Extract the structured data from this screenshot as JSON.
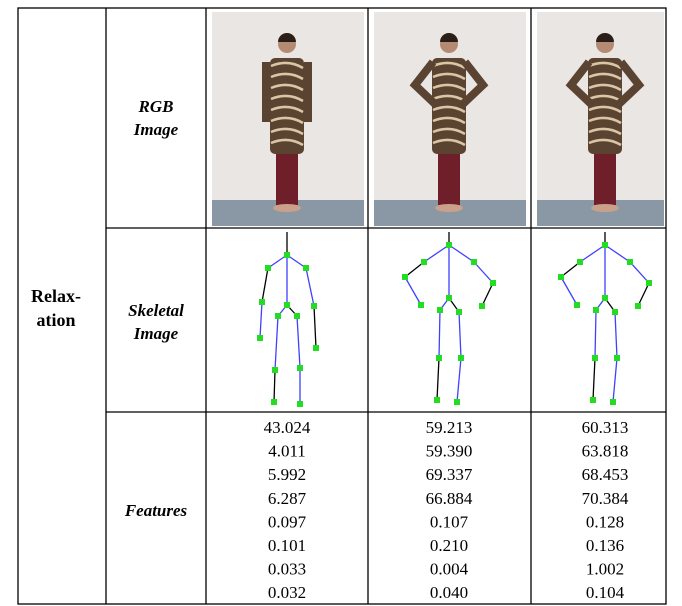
{
  "table": {
    "group_label": [
      "Relax-",
      "ation"
    ],
    "row_headers": [
      [
        "RGB",
        "Image"
      ],
      [
        "Skeletal",
        "Image"
      ],
      [
        "Features"
      ]
    ],
    "features": [
      [
        "43.024",
        "4.011",
        "5.992",
        "6.287",
        "0.097",
        "0.101",
        "0.033",
        "0.032"
      ],
      [
        "59.213",
        "59.390",
        "69.337",
        "66.884",
        "0.107",
        "0.210",
        "0.004",
        "0.040"
      ],
      [
        "60.313",
        "63.818",
        "68.453",
        "70.384",
        "0.128",
        "0.136",
        "1.002",
        "0.104"
      ]
    ]
  }
}
